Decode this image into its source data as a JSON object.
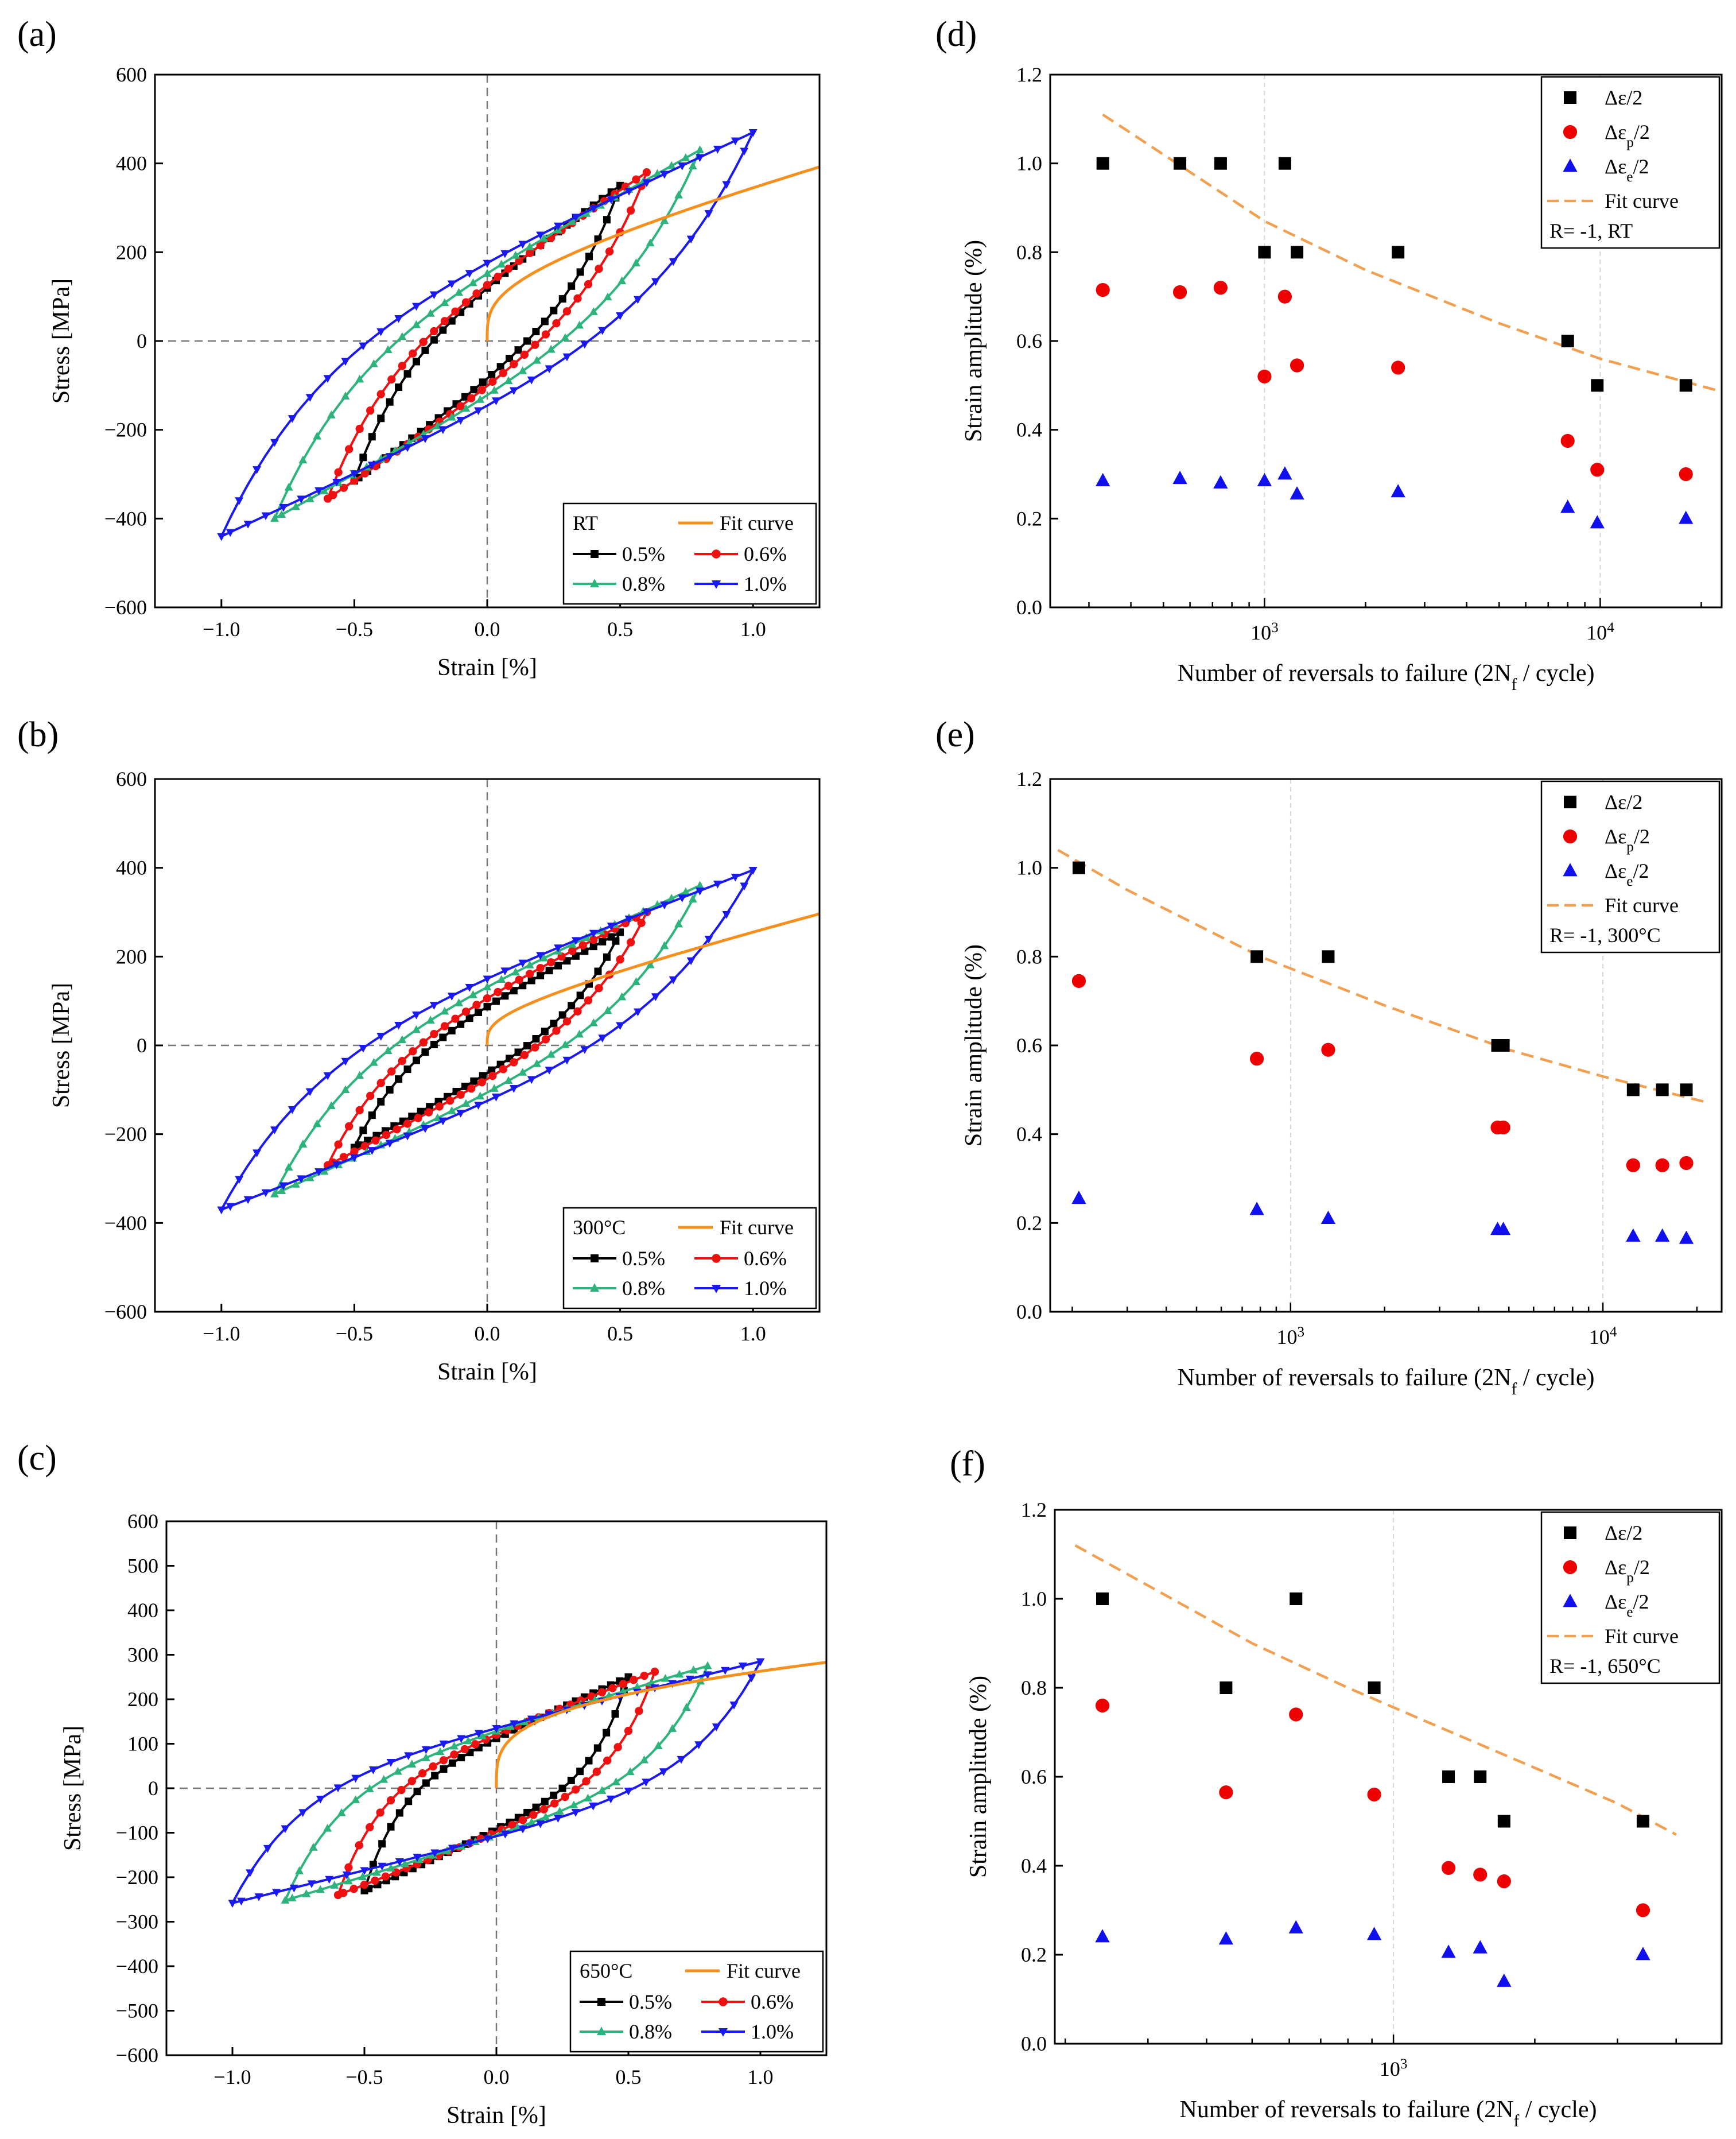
{
  "figure": {
    "panel_labels": [
      "(a)",
      "(b)",
      "(c)",
      "(d)",
      "(e)",
      "(f)"
    ]
  },
  "colors": {
    "black": "#000000",
    "red": "#ee1111",
    "green": "#2db37c",
    "blue": "#1a1af0",
    "orange": "#f5901e",
    "fit": "#f0a050",
    "sq": "#000000",
    "dot": "#ee0000",
    "tri": "#1010ee"
  },
  "chart_data": [
    {
      "id": "a",
      "type": "line",
      "title": "",
      "xlabel": "Strain [%]",
      "ylabel": "Stress [MPa]",
      "xlim": [
        -1.25,
        1.25
      ],
      "ylim": [
        -600,
        600
      ],
      "xticks": [
        -1.0,
        -0.5,
        0.0,
        0.5,
        1.0
      ],
      "xtick_labels": [
        "−1.0",
        "−0.5",
        "0.0",
        "0.5",
        "1.0"
      ],
      "yticks": [
        -600,
        -400,
        -200,
        0,
        200,
        400,
        600
      ],
      "ytick_labels": [
        "−600",
        "−400",
        "−200",
        "0",
        "200",
        "400",
        "600"
      ],
      "legend": {
        "position": "bottom-right",
        "title": "RT",
        "fit_label": "Fit curve",
        "entries": [
          "0.5%",
          "0.6%",
          "0.8%",
          "1.0%"
        ]
      },
      "fit": {
        "A": 210,
        "B": 300,
        "n": 0.5
      },
      "loops": [
        {
          "name": "0.5%",
          "amp": 0.5,
          "max": 350,
          "min": -315,
          "offset": 225,
          "k": 4.5,
          "color": "black",
          "marker": "square"
        },
        {
          "name": "0.6%",
          "amp": 0.6,
          "max": 380,
          "min": -355,
          "offset": 250,
          "k": 4.6,
          "color": "red",
          "marker": "circle"
        },
        {
          "name": "0.8%",
          "amp": 0.8,
          "max": 430,
          "min": -400,
          "offset": 300,
          "k": 4.7,
          "color": "green",
          "marker": "triangle-up"
        },
        {
          "name": "1.0%",
          "amp": 1.0,
          "max": 470,
          "min": -440,
          "offset": 350,
          "k": 4.8,
          "color": "blue",
          "marker": "triangle-down"
        }
      ]
    },
    {
      "id": "b",
      "type": "line",
      "title": "",
      "xlabel": "Strain [%]",
      "ylabel": "Stress [MPa]",
      "xlim": [
        -1.25,
        1.25
      ],
      "ylim": [
        -600,
        600
      ],
      "xticks": [
        -1.0,
        -0.5,
        0.0,
        0.5,
        1.0
      ],
      "xtick_labels": [
        "−1.0",
        "−0.5",
        "0.0",
        "0.5",
        "1.0"
      ],
      "yticks": [
        -600,
        -400,
        -200,
        0,
        200,
        400,
        600
      ],
      "ytick_labels": [
        "−600",
        "−400",
        "−200",
        "0",
        "200",
        "400",
        "600"
      ],
      "legend": {
        "position": "bottom-right",
        "title": "300°C",
        "fit_label": "Fit curve",
        "entries": [
          "0.5%",
          "0.6%",
          "0.8%",
          "1.0%"
        ]
      },
      "fit": {
        "A": 120,
        "B": 300,
        "n": 0.5
      },
      "loops": [
        {
          "name": "0.5%",
          "amp": 0.5,
          "max": 255,
          "min": -230,
          "offset": 165,
          "k": 4.5,
          "color": "black",
          "marker": "square"
        },
        {
          "name": "0.6%",
          "amp": 0.6,
          "max": 300,
          "min": -270,
          "offset": 200,
          "k": 4.6,
          "color": "red",
          "marker": "circle"
        },
        {
          "name": "0.8%",
          "amp": 0.8,
          "max": 360,
          "min": -335,
          "offset": 260,
          "k": 4.7,
          "color": "green",
          "marker": "triangle-up"
        },
        {
          "name": "1.0%",
          "amp": 1.0,
          "max": 395,
          "min": -370,
          "offset": 300,
          "k": 4.8,
          "color": "blue",
          "marker": "triangle-down"
        }
      ]
    },
    {
      "id": "c",
      "type": "line",
      "title": "",
      "xlabel": "Strain [%]",
      "ylabel": "Stress [MPa]",
      "xlim": [
        -1.25,
        1.25
      ],
      "ylim": [
        -600,
        600
      ],
      "xticks": [
        -1.0,
        -0.5,
        0.0,
        0.5,
        1.0
      ],
      "xtick_labels": [
        "−1.0",
        "−0.5",
        "0.0",
        "0.5",
        "1.0"
      ],
      "yticks": [
        -600,
        -500,
        -400,
        -300,
        -200,
        -100,
        0,
        100,
        200,
        300,
        400,
        500,
        600
      ],
      "ytick_labels": [
        "−600",
        "−500",
        "−400",
        "−300",
        "−200",
        "−100",
        "0",
        "100",
        "200",
        "300",
        "400",
        "500",
        "600"
      ],
      "legend": {
        "position": "bottom-right",
        "title": "650°C",
        "fit_label": "Fit curve",
        "entries": [
          "0.5%",
          "0.6%",
          "0.8%",
          "1.0%"
        ]
      },
      "fit": {
        "A": 245,
        "B": 40,
        "n": 0.5
      },
      "loops": [
        {
          "name": "0.5%",
          "amp": 0.5,
          "max": 250,
          "min": -230,
          "offset": 210,
          "k": 7,
          "color": "black",
          "marker": "square"
        },
        {
          "name": "0.6%",
          "amp": 0.6,
          "max": 262,
          "min": -240,
          "offset": 225,
          "k": 7,
          "color": "red",
          "marker": "circle"
        },
        {
          "name": "0.8%",
          "amp": 0.8,
          "max": 275,
          "min": -252,
          "offset": 240,
          "k": 7,
          "color": "green",
          "marker": "triangle-up"
        },
        {
          "name": "1.0%",
          "amp": 1.0,
          "max": 285,
          "min": -258,
          "offset": 250,
          "k": 7,
          "color": "blue",
          "marker": "triangle-down"
        }
      ]
    },
    {
      "id": "d",
      "type": "scatter",
      "title": "",
      "xlabel": "Number of reversals to failure (2N",
      "xlabel_sub": "f",
      "xlabel_end": " / cycle)",
      "ylabel": "Strain amplitude (%)",
      "xscale": "log",
      "xlim": [
        230,
        23000
      ],
      "ylim": [
        0.0,
        1.2
      ],
      "yticks": [
        0.0,
        0.2,
        0.4,
        0.6,
        0.8,
        1.0,
        1.2
      ],
      "ytick_labels": [
        "0.0",
        "0.2",
        "0.4",
        "0.6",
        "0.8",
        "1.0",
        "1.2"
      ],
      "xticks": [
        1000,
        10000
      ],
      "xtick_labels": [
        {
          "base": "10",
          "exp": "3"
        },
        {
          "base": "10",
          "exp": "4"
        }
      ],
      "legend": {
        "position": "top-right",
        "entries": [
          {
            "sym": "Δε",
            "sub": "",
            "end": "/2"
          },
          {
            "sym": "Δε",
            "sub": "p",
            "end": "/2"
          },
          {
            "sym": "Δε",
            "sub": "e",
            "end": "/2"
          }
        ],
        "fit_label": "Fit curve",
        "condition": "R= -1, RT"
      },
      "fit": {
        "x": [
          330,
          500,
          1000,
          2000,
          5000,
          10000,
          22000
        ],
        "y": [
          1.11,
          1.02,
          0.87,
          0.76,
          0.64,
          0.56,
          0.49
        ]
      },
      "series": [
        {
          "name": "Δε/2",
          "marker": "square",
          "color": "sq",
          "x": [
            330,
            560,
            740,
            1000,
            1150,
            1250,
            2500,
            8000,
            9800,
            18000
          ],
          "y": [
            1.0,
            1.0,
            1.0,
            0.8,
            1.0,
            0.8,
            0.8,
            0.6,
            0.5,
            0.5
          ]
        },
        {
          "name": "Δεp/2",
          "marker": "circle",
          "color": "dot",
          "x": [
            330,
            560,
            740,
            1000,
            1150,
            1250,
            2500,
            8000,
            9800,
            18000
          ],
          "y": [
            0.715,
            0.71,
            0.72,
            0.52,
            0.7,
            0.545,
            0.54,
            0.375,
            0.31,
            0.3
          ]
        },
        {
          "name": "Δεe/2",
          "marker": "triangle",
          "color": "tri",
          "x": [
            330,
            560,
            740,
            1000,
            1150,
            1250,
            2500,
            8000,
            9800,
            18000
          ],
          "y": [
            0.285,
            0.29,
            0.28,
            0.285,
            0.3,
            0.255,
            0.26,
            0.225,
            0.19,
            0.2
          ]
        }
      ]
    },
    {
      "id": "e",
      "type": "scatter",
      "title": "",
      "xlabel": "Number of reversals to failure (2N",
      "xlabel_sub": "f",
      "xlabel_end": " / cycle)",
      "ylabel": "Strain amplitude (%)",
      "xscale": "log",
      "xlim": [
        170,
        24000
      ],
      "ylim": [
        0.0,
        1.2
      ],
      "yticks": [
        0.0,
        0.2,
        0.4,
        0.6,
        0.8,
        1.0,
        1.2
      ],
      "ytick_labels": [
        "0.0",
        "0.2",
        "0.4",
        "0.6",
        "0.8",
        "1.0",
        "1.2"
      ],
      "xticks": [
        1000,
        10000
      ],
      "xtick_labels": [
        {
          "base": "10",
          "exp": "3"
        },
        {
          "base": "10",
          "exp": "4"
        }
      ],
      "legend": {
        "position": "top-right",
        "entries": [
          {
            "sym": "Δε",
            "sub": "",
            "end": "/2"
          },
          {
            "sym": "Δε",
            "sub": "p",
            "end": "/2"
          },
          {
            "sym": "Δε",
            "sub": "e",
            "end": "/2"
          }
        ],
        "fit_label": "Fit curve",
        "condition": "R= -1, 300°C"
      },
      "fit": {
        "x": [
          180,
          300,
          800,
          2000,
          5000,
          10000,
          22000
        ],
        "y": [
          1.04,
          0.95,
          0.8,
          0.69,
          0.59,
          0.53,
          0.47
        ]
      },
      "series": [
        {
          "name": "Δε/2",
          "marker": "square",
          "color": "sq",
          "x": [
            210,
            780,
            1320,
            4600,
            4800,
            12500,
            15500,
            18500
          ],
          "y": [
            1.0,
            0.8,
            0.8,
            0.6,
            0.6,
            0.5,
            0.5,
            0.5
          ]
        },
        {
          "name": "Δεp/2",
          "marker": "circle",
          "color": "dot",
          "x": [
            210,
            780,
            1320,
            4600,
            4800,
            12500,
            15500,
            18500
          ],
          "y": [
            0.745,
            0.57,
            0.59,
            0.415,
            0.415,
            0.33,
            0.33,
            0.335
          ]
        },
        {
          "name": "Δεe/2",
          "marker": "triangle",
          "color": "tri",
          "x": [
            210,
            780,
            1320,
            4600,
            4800,
            12500,
            15500,
            18500
          ],
          "y": [
            0.255,
            0.23,
            0.21,
            0.185,
            0.185,
            0.17,
            0.17,
            0.165
          ]
        }
      ]
    },
    {
      "id": "f",
      "type": "scatter",
      "title": "",
      "xlabel": "Number of reversals to failure (2N",
      "xlabel_sub": "f",
      "xlabel_end": " / cycle)",
      "ylabel": "Strain amplitude (%)",
      "xscale": "log",
      "xlim": [
        190,
        5000
      ],
      "ylim": [
        0.0,
        1.2
      ],
      "yticks": [
        0.0,
        0.2,
        0.4,
        0.6,
        0.8,
        1.0,
        1.2
      ],
      "ytick_labels": [
        "0.0",
        "0.2",
        "0.4",
        "0.6",
        "0.8",
        "1.0",
        "1.2"
      ],
      "xticks": [
        1000
      ],
      "xtick_labels": [
        {
          "base": "10",
          "exp": "3"
        }
      ],
      "legend": {
        "position": "top-right",
        "entries": [
          {
            "sym": "Δε",
            "sub": "",
            "end": "/2"
          },
          {
            "sym": "Δε",
            "sub": "p",
            "end": "/2"
          },
          {
            "sym": "Δε",
            "sub": "e",
            "end": "/2"
          }
        ],
        "fit_label": "Fit curve",
        "condition": "R= -1, 650°C"
      },
      "fit": {
        "x": [
          210,
          300,
          500,
          800,
          1200,
          2000,
          3000,
          4000
        ],
        "y": [
          1.12,
          1.03,
          0.9,
          0.8,
          0.72,
          0.62,
          0.54,
          0.47
        ]
      },
      "series": [
        {
          "name": "Δε/2",
          "marker": "square",
          "color": "sq",
          "x": [
            240,
            440,
            620,
            910,
            1310,
            1530,
            1720,
            3400
          ],
          "y": [
            1.0,
            0.8,
            1.0,
            0.8,
            0.6,
            0.6,
            0.5,
            0.5
          ]
        },
        {
          "name": "Δεp/2",
          "marker": "circle",
          "color": "dot",
          "x": [
            240,
            440,
            620,
            910,
            1310,
            1530,
            1720,
            3400
          ],
          "y": [
            0.76,
            0.565,
            0.74,
            0.56,
            0.395,
            0.38,
            0.365,
            0.3
          ]
        },
        {
          "name": "Δεe/2",
          "marker": "triangle",
          "color": "tri",
          "x": [
            240,
            440,
            620,
            910,
            1310,
            1530,
            1720,
            3400
          ],
          "y": [
            0.24,
            0.235,
            0.26,
            0.245,
            0.205,
            0.215,
            0.14,
            0.2
          ]
        }
      ]
    }
  ]
}
